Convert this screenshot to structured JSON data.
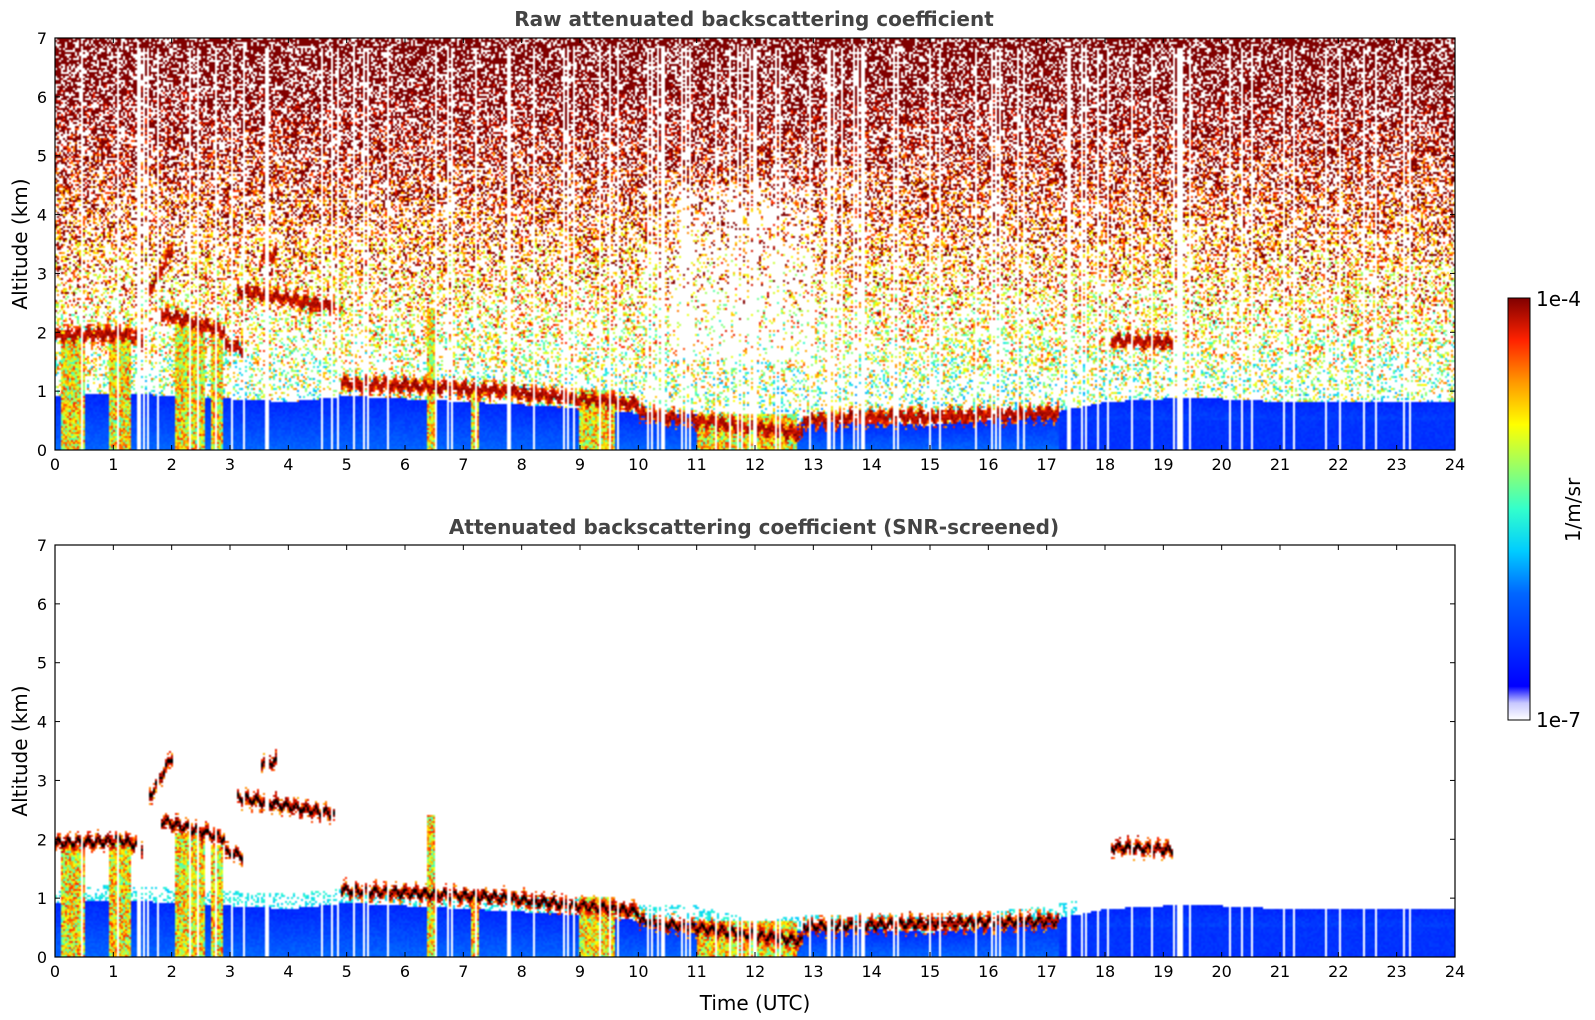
{
  "figure": {
    "xlabel": "Time (UTC)",
    "colorbar": {
      "max_label": "1e-4",
      "min_label": "1e-7",
      "unit_label": "1/m/sr",
      "vmin": 1e-07,
      "vmax": 0.0001,
      "scale": "log",
      "colormap": "jet"
    }
  },
  "chart_data": [
    {
      "type": "heatmap",
      "title": "Raw attenuated backscattering coefficient",
      "xlabel": "",
      "ylabel": "Altitude (km)",
      "xlim": [
        0,
        24
      ],
      "ylim": [
        0,
        7
      ],
      "xticks": [
        "0",
        "1",
        "2",
        "3",
        "4",
        "5",
        "6",
        "7",
        "8",
        "9",
        "10",
        "11",
        "12",
        "13",
        "14",
        "15",
        "16",
        "17",
        "18",
        "19",
        "20",
        "21",
        "22",
        "23",
        "24"
      ],
      "yticks": [
        "0",
        "1",
        "2",
        "3",
        "4",
        "5",
        "6",
        "7"
      ],
      "screened": false
    },
    {
      "type": "heatmap",
      "title": "Attenuated backscattering coefficient (SNR-screened)",
      "xlabel": "Time (UTC)",
      "ylabel": "Altitude (km)",
      "xlim": [
        0,
        24
      ],
      "ylim": [
        0,
        7
      ],
      "xticks": [
        "0",
        "1",
        "2",
        "3",
        "4",
        "5",
        "6",
        "7",
        "8",
        "9",
        "10",
        "11",
        "12",
        "13",
        "14",
        "15",
        "16",
        "17",
        "18",
        "19",
        "20",
        "21",
        "22",
        "23",
        "24"
      ],
      "yticks": [
        "0",
        "1",
        "2",
        "3",
        "4",
        "5",
        "6",
        "7"
      ],
      "screened": true
    }
  ],
  "features": {
    "boundary_layer_top_km": [
      [
        0,
        0.9
      ],
      [
        1,
        0.95
      ],
      [
        2,
        0.9
      ],
      [
        3,
        0.85
      ],
      [
        4,
        0.8
      ],
      [
        5,
        0.9
      ],
      [
        6,
        0.85
      ],
      [
        7,
        0.8
      ],
      [
        8,
        0.75
      ],
      [
        9,
        0.7
      ],
      [
        10,
        0.6
      ],
      [
        11,
        0.6
      ],
      [
        12,
        0.35
      ],
      [
        13,
        0.45
      ],
      [
        14,
        0.45
      ],
      [
        15,
        0.4
      ],
      [
        16,
        0.5
      ],
      [
        17,
        0.6
      ],
      [
        18,
        0.8
      ],
      [
        19,
        0.85
      ],
      [
        20,
        0.85
      ],
      [
        21,
        0.8
      ],
      [
        22,
        0.8
      ],
      [
        23,
        0.8
      ],
      [
        24,
        0.8
      ]
    ],
    "cloud_layers": [
      {
        "t": [
          0.0,
          1.0
        ],
        "alt": [
          1.92,
          1.95
        ]
      },
      {
        "t": [
          1.0,
          1.5
        ],
        "alt": [
          2.0,
          1.85
        ]
      },
      {
        "t": [
          1.6,
          2.0
        ],
        "alt": [
          2.7,
          3.4
        ]
      },
      {
        "t": [
          1.8,
          2.9
        ],
        "alt": [
          2.3,
          2.0
        ]
      },
      {
        "t": [
          2.9,
          3.2
        ],
        "alt": [
          1.75,
          1.7
        ]
      },
      {
        "t": [
          3.1,
          4.8
        ],
        "alt": [
          2.7,
          2.4
        ]
      },
      {
        "t": [
          3.5,
          3.8
        ],
        "alt": [
          3.3,
          3.3
        ]
      },
      {
        "t": [
          4.9,
          7.5
        ],
        "alt": [
          1.12,
          1.0
        ]
      },
      {
        "t": [
          7.5,
          10.0
        ],
        "alt": [
          1.0,
          0.75
        ]
      },
      {
        "t": [
          10.0,
          12.8
        ],
        "alt": [
          0.6,
          0.25
        ]
      },
      {
        "t": [
          12.8,
          17.2
        ],
        "alt": [
          0.5,
          0.6
        ]
      },
      {
        "t": [
          18.1,
          19.2
        ],
        "alt": [
          1.85,
          1.8
        ]
      }
    ],
    "precipitation_streaks": [
      {
        "t": [
          0.1,
          0.5
        ],
        "top": 1.9
      },
      {
        "t": [
          0.9,
          1.3
        ],
        "top": 1.95
      },
      {
        "t": [
          2.05,
          2.55
        ],
        "top": 2.1
      },
      {
        "t": [
          2.65,
          2.85
        ],
        "top": 1.9
      },
      {
        "t": [
          6.35,
          6.5
        ],
        "top": 2.4
      },
      {
        "t": [
          7.1,
          7.25
        ],
        "top": 1.0
      },
      {
        "t": [
          8.95,
          9.6
        ],
        "top": 1.0
      },
      {
        "t": [
          11.0,
          12.7
        ],
        "top": 0.6
      }
    ]
  }
}
